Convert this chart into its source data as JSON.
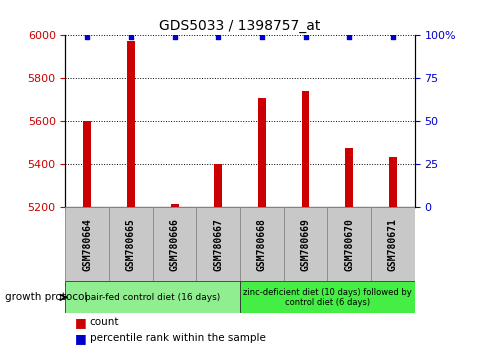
{
  "title": "GDS5033 / 1398757_at",
  "samples": [
    "GSM780664",
    "GSM780665",
    "GSM780666",
    "GSM780667",
    "GSM780668",
    "GSM780669",
    "GSM780670",
    "GSM780671"
  ],
  "counts": [
    5602,
    5975,
    5213,
    5400,
    5710,
    5740,
    5475,
    5435
  ],
  "percentile_ranks": [
    99,
    99,
    99,
    99,
    99,
    99,
    99,
    99
  ],
  "ylim_left": [
    5200,
    6000
  ],
  "ylim_right": [
    0,
    100
  ],
  "yticks_left": [
    5200,
    5400,
    5600,
    5800,
    6000
  ],
  "yticks_right": [
    0,
    25,
    50,
    75,
    100
  ],
  "ytick_labels_right": [
    "0",
    "25",
    "50",
    "75",
    "100%"
  ],
  "bar_color": "#cc0000",
  "dot_color": "#0000cc",
  "bar_width": 0.18,
  "grid_color": "#000000",
  "group1_indices": [
    0,
    1,
    2,
    3
  ],
  "group2_indices": [
    4,
    5,
    6,
    7
  ],
  "group1_label": "pair-fed control diet (16 days)",
  "group2_label": "zinc-deficient diet (10 days) followed by\ncontrol diet (6 days)",
  "group1_color": "#90ee90",
  "group2_color": "#44ee44",
  "protocol_label": "growth protocol",
  "legend_count_label": "count",
  "legend_pct_label": "percentile rank within the sample",
  "tick_label_color_left": "#cc0000",
  "tick_label_color_right": "#0000cc",
  "title_color": "#000000",
  "label_box_color": "#c8c8c8",
  "label_box_edge": "#888888"
}
